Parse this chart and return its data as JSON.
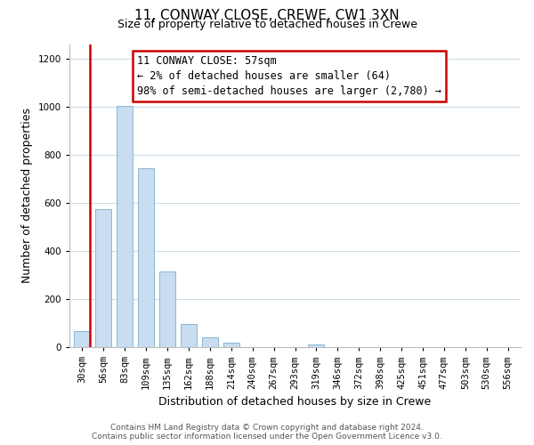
{
  "title": "11, CONWAY CLOSE, CREWE, CW1 3XN",
  "subtitle": "Size of property relative to detached houses in Crewe",
  "xlabel": "Distribution of detached houses by size in Crewe",
  "ylabel": "Number of detached properties",
  "bar_labels": [
    "30sqm",
    "56sqm",
    "83sqm",
    "109sqm",
    "135sqm",
    "162sqm",
    "188sqm",
    "214sqm",
    "240sqm",
    "267sqm",
    "293sqm",
    "319sqm",
    "346sqm",
    "372sqm",
    "398sqm",
    "425sqm",
    "451sqm",
    "477sqm",
    "503sqm",
    "530sqm",
    "556sqm"
  ],
  "bar_values": [
    65,
    575,
    1005,
    745,
    315,
    95,
    40,
    20,
    0,
    0,
    0,
    10,
    0,
    0,
    0,
    0,
    0,
    0,
    0,
    0,
    0
  ],
  "bar_color": "#c8ddef",
  "bar_edge_color": "#7ab0cf",
  "red_line_after_index": 0,
  "highlight_color": "#cc0000",
  "ylim": [
    0,
    1260
  ],
  "yticks": [
    0,
    200,
    400,
    600,
    800,
    1000,
    1200
  ],
  "annotation_title": "11 CONWAY CLOSE: 57sqm",
  "annotation_line1": "← 2% of detached houses are smaller (64)",
  "annotation_line2": "98% of semi-detached houses are larger (2,780) →",
  "annotation_box_color": "#ffffff",
  "annotation_box_edge": "#cc0000",
  "footer_line1": "Contains HM Land Registry data © Crown copyright and database right 2024.",
  "footer_line2": "Contains public sector information licensed under the Open Government Licence v3.0.",
  "background_color": "#ffffff",
  "grid_color": "#ccdde8",
  "title_fontsize": 11,
  "subtitle_fontsize": 9,
  "axis_label_fontsize": 9,
  "tick_fontsize": 7.5,
  "footer_fontsize": 6.5
}
